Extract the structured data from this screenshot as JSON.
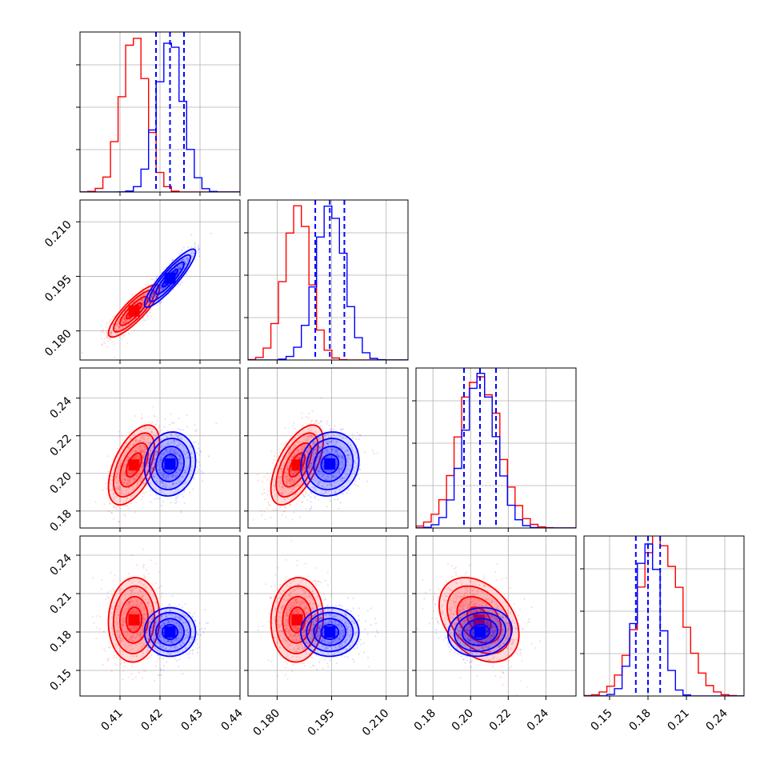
{
  "chart_data": {
    "type": "corner",
    "params": [
      {
        "range": [
          0.4,
          0.44
        ],
        "ticks": [
          0.41,
          0.42,
          0.43,
          0.44
        ],
        "tick_labels": [
          "0.41",
          "0.42",
          "0.43",
          "0.44"
        ]
      },
      {
        "range": [
          0.172,
          0.216
        ],
        "ticks": [
          0.18,
          0.195,
          0.21
        ],
        "tick_labels": [
          "0.180",
          "0.195",
          "0.210"
        ]
      },
      {
        "range": [
          0.171,
          0.256
        ],
        "ticks": [
          0.18,
          0.2,
          0.22,
          0.24
        ],
        "tick_labels": [
          "0.18",
          "0.20",
          "0.22",
          "0.24"
        ]
      },
      {
        "range": [
          0.13,
          0.255
        ],
        "ticks": [
          0.15,
          0.18,
          0.21,
          0.24
        ],
        "tick_labels": [
          "0.15",
          "0.18",
          "0.21",
          "0.24"
        ]
      }
    ],
    "series": [
      {
        "color": "#ff0000",
        "mean": [
          0.4135,
          0.1855,
          0.2045,
          0.1895
        ],
        "std": [
          0.0032,
          0.0036,
          0.0106,
          0.0165
        ]
      },
      {
        "color": "#0000ff",
        "mean": [
          0.4225,
          0.1945,
          0.205,
          0.18
        ],
        "std": [
          0.0032,
          0.004,
          0.0085,
          0.0095
        ]
      }
    ],
    "correlations": {
      "red": [
        [
          1,
          0.85,
          0.55,
          0.05
        ],
        [
          0.85,
          1,
          0.6,
          0.05
        ],
        [
          0.55,
          0.6,
          1,
          -0.35
        ],
        [
          0.05,
          0.05,
          -0.35,
          1
        ]
      ],
      "blue": [
        [
          1,
          0.9,
          0.1,
          0.0
        ],
        [
          0.9,
          1,
          0.1,
          0.0
        ],
        [
          0.1,
          0.1,
          1,
          0.1
        ],
        [
          0.0,
          0.0,
          0.1,
          1
        ]
      ]
    },
    "quantile_lines": {
      "color": "#0000ff",
      "values": [
        [
          0.419,
          0.4225,
          0.426
        ],
        [
          0.1905,
          0.1945,
          0.1985
        ],
        [
          0.1965,
          0.205,
          0.2135
        ],
        [
          0.1705,
          0.18,
          0.1895
        ]
      ]
    },
    "grid": true,
    "legend": false
  }
}
